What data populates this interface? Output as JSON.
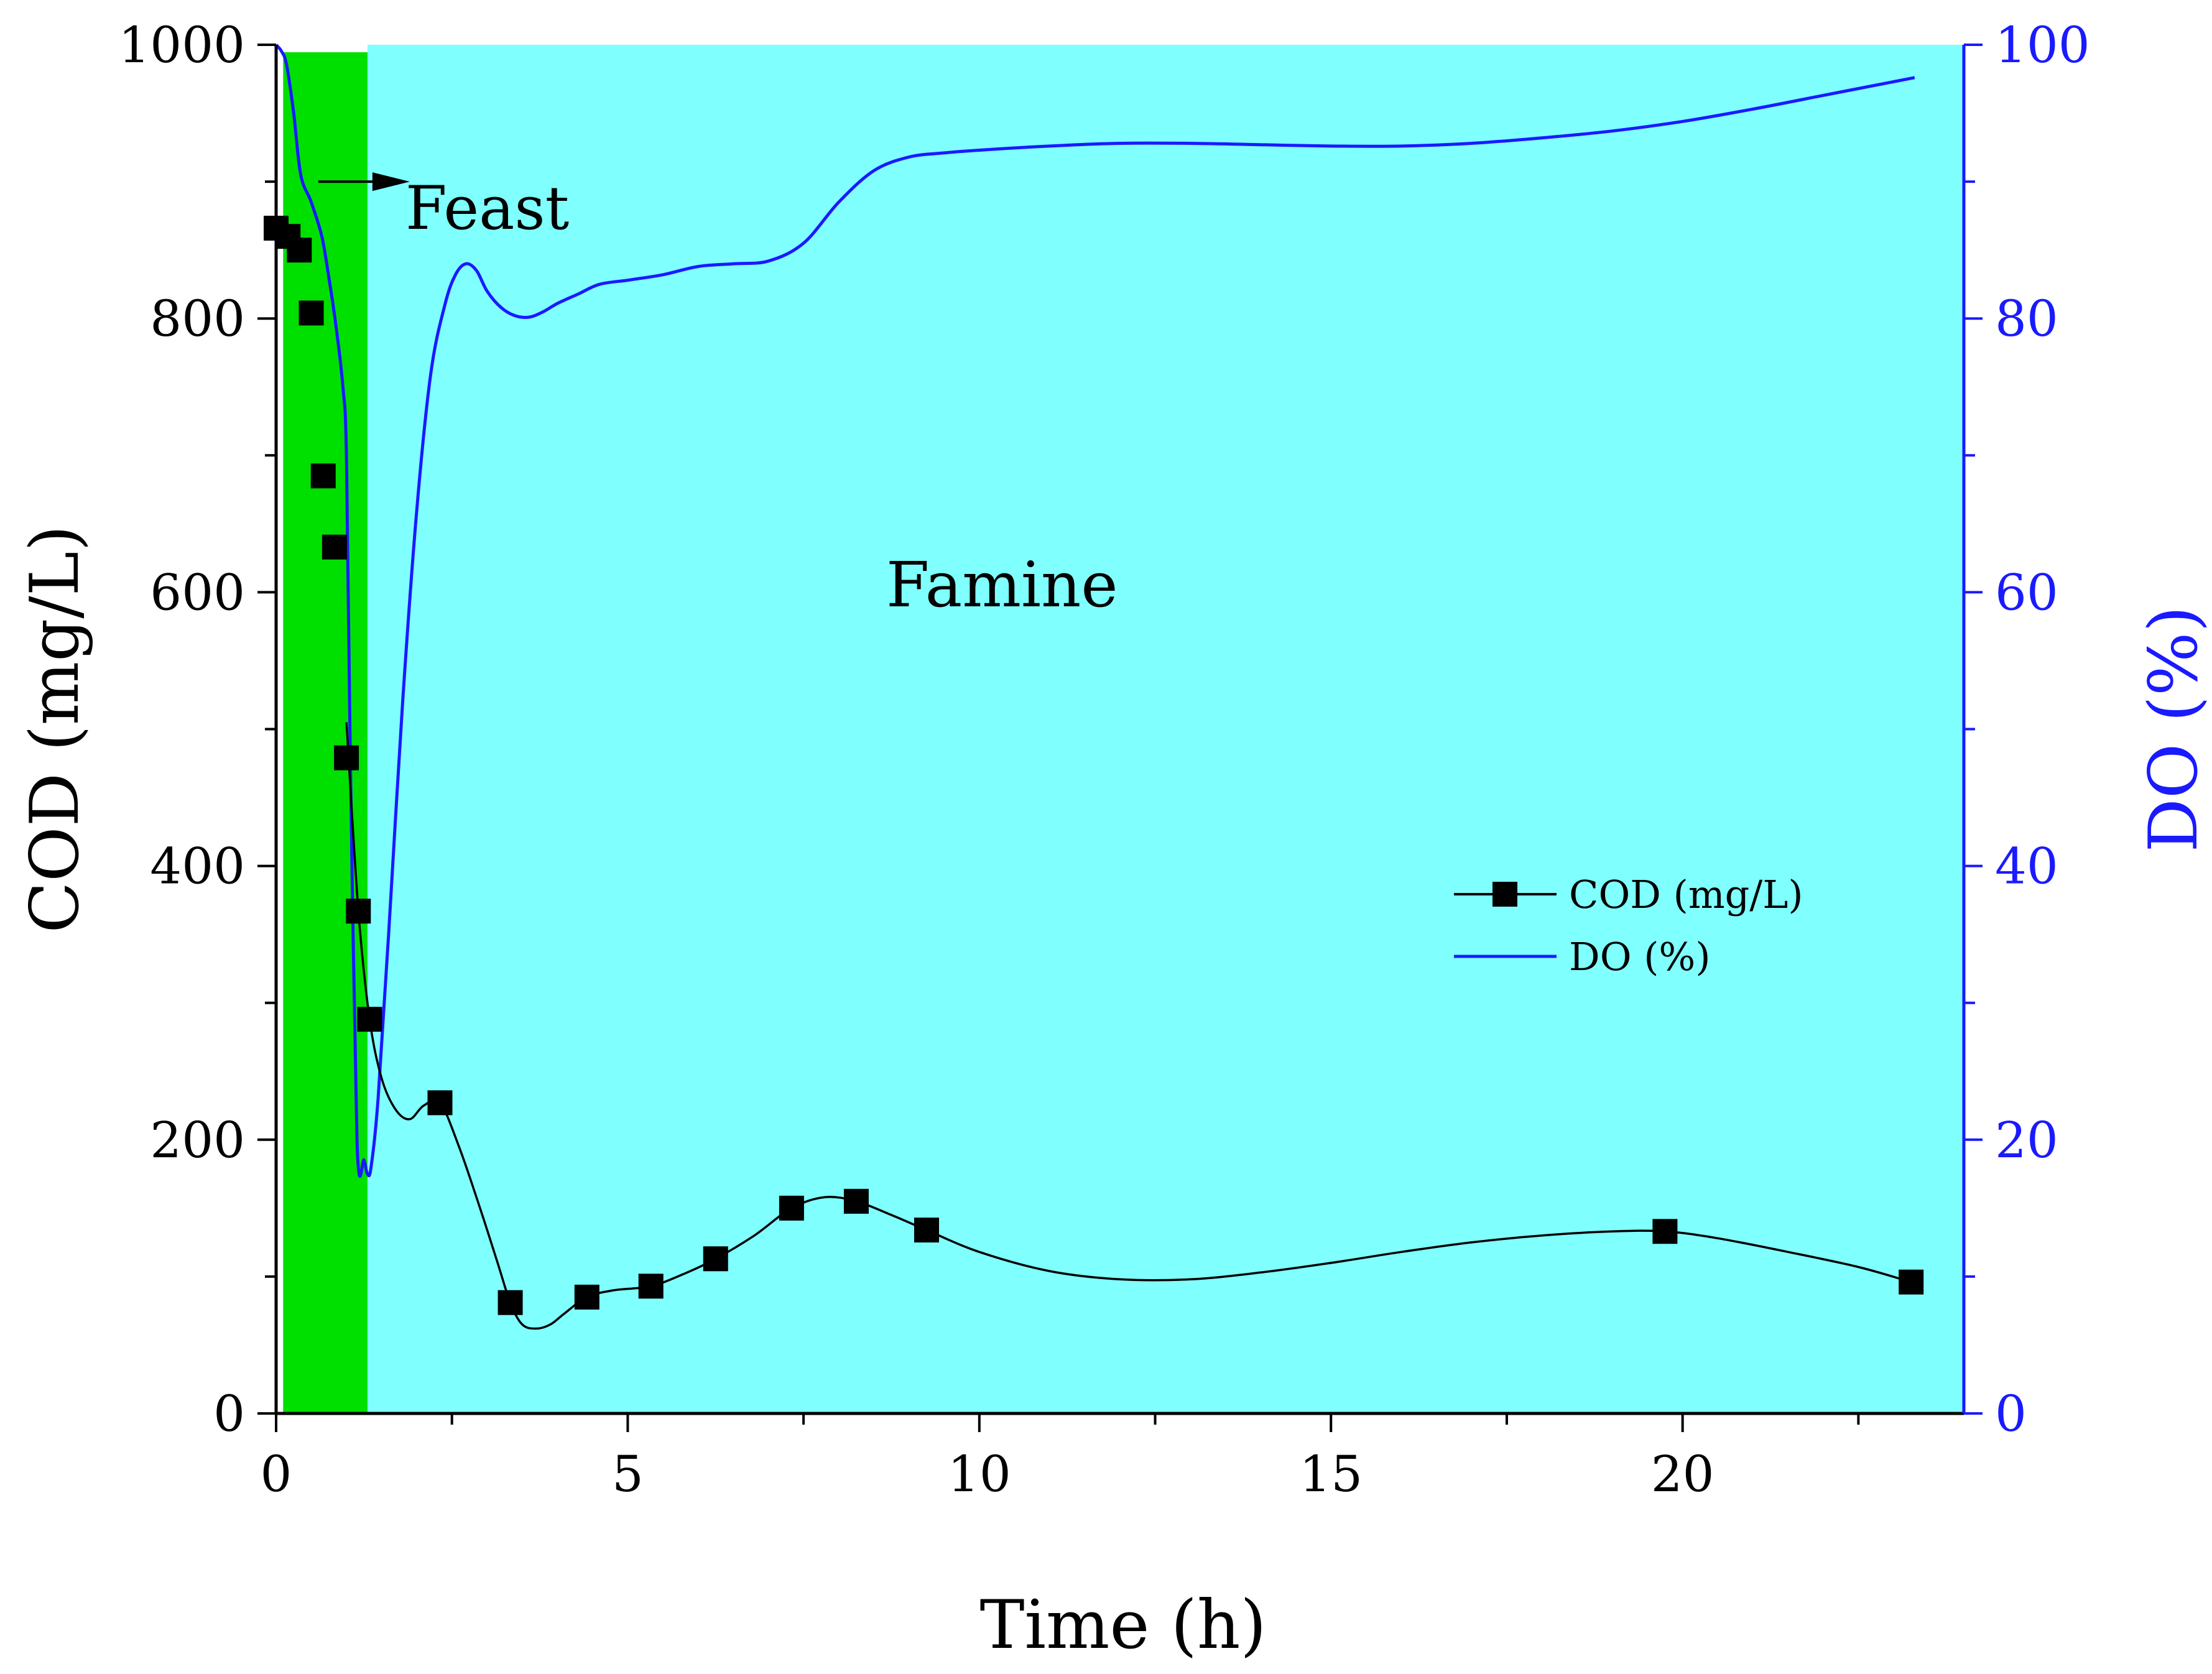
{
  "chart_data": {
    "type": "line",
    "xlabel": "Time (h)",
    "ylabel_left": "COD (mg/L)",
    "ylabel_right": "DO (%)",
    "xlim": [
      0,
      24
    ],
    "ylim_left": [
      0,
      1000
    ],
    "ylim_right": [
      0,
      100
    ],
    "x_ticks": [
      0,
      5,
      10,
      15,
      20
    ],
    "x_tick_labels": [
      "0",
      "5",
      "10",
      "15",
      "20"
    ],
    "y_left_ticks": [
      0,
      200,
      400,
      600,
      800,
      1000
    ],
    "y_left_tick_labels": [
      "0",
      "200",
      "400",
      "600",
      "800",
      "1000"
    ],
    "y_right_ticks": [
      0,
      20,
      40,
      60,
      80,
      100
    ],
    "y_right_tick_labels": [
      "0",
      "20",
      "40",
      "60",
      "80",
      "100"
    ],
    "regions": [
      {
        "name": "Feast",
        "x_start": 0.1,
        "x_end": 1.3,
        "color": "#00e000"
      },
      {
        "name": "Famine",
        "x_start": 1.3,
        "x_end": 24,
        "color": "#80ffff"
      }
    ],
    "annotations": {
      "feast_label": "Feast",
      "famine_label": "Famine",
      "feast_arrow": {
        "x_from": 0.6,
        "x_to": 1.9,
        "y": 900
      }
    },
    "series": [
      {
        "name": "COD (mg/L)",
        "axis": "left",
        "color": "#000000",
        "marker": "square",
        "x": [
          0.0,
          0.17,
          0.33,
          0.5,
          0.67,
          0.83,
          1.0,
          1.17,
          1.33,
          2.33,
          3.33,
          4.42,
          5.33,
          6.25,
          7.33,
          8.25,
          9.25,
          19.75,
          23.25
        ],
        "values": [
          866,
          860,
          850,
          804,
          685,
          633,
          479,
          367,
          288,
          227,
          81,
          85,
          93,
          113,
          150,
          155,
          134,
          133,
          96
        ],
        "curve_x": [
          1.0,
          1.17,
          1.33,
          1.5,
          1.7,
          1.9,
          2.1,
          2.33,
          2.6,
          2.9,
          3.15,
          3.33,
          3.5,
          3.7,
          3.9,
          4.1,
          4.42,
          4.8,
          5.33,
          5.8,
          6.25,
          6.8,
          7.33,
          7.8,
          8.25,
          8.75,
          9.25,
          10.0,
          11.0,
          12.0,
          13.0,
          14.0,
          15.0,
          16.0,
          17.0,
          18.0,
          19.0,
          19.75,
          20.5,
          21.5,
          22.5,
          23.25
        ],
        "curve_values": [
          505,
          367,
          288,
          245,
          222,
          215,
          225,
          227,
          195,
          150,
          110,
          81,
          65,
          62,
          65,
          73,
          85,
          90,
          93,
          102,
          113,
          130,
          150,
          158,
          155,
          145,
          134,
          118,
          104,
          98,
          98,
          103,
          110,
          118,
          125,
          130,
          133,
          133,
          128,
          118,
          107,
          96
        ]
      },
      {
        "name": "DO (%)",
        "axis": "right",
        "color": "#1a1aff",
        "marker": "none",
        "x": [
          0.0,
          0.08,
          0.15,
          0.25,
          0.35,
          0.5,
          0.65,
          0.75,
          0.85,
          0.95,
          1.0,
          1.05,
          1.15,
          1.25,
          1.3,
          1.35,
          1.45,
          1.6,
          1.8,
          2.0,
          2.2,
          2.4,
          2.55,
          2.7,
          2.85,
          3.0,
          3.2,
          3.4,
          3.6,
          3.8,
          4.0,
          4.3,
          4.6,
          5.0,
          5.5,
          6.0,
          6.5,
          7.0,
          7.5,
          8.0,
          8.5,
          9.0,
          9.5,
          10.0,
          11.0,
          12.0,
          13.0,
          14.0,
          15.0,
          16.0,
          17.0,
          18.0,
          19.0,
          20.0,
          21.0,
          22.0,
          23.0,
          23.3
        ],
        "values": [
          100,
          99.5,
          98.5,
          95,
          90.5,
          88.5,
          86,
          83,
          79.5,
          75,
          70,
          50,
          20,
          18.5,
          17.5,
          18,
          23,
          35,
          52,
          66,
          76,
          81,
          83.2,
          84,
          83.5,
          82,
          80.8,
          80.2,
          80.1,
          80.5,
          81.1,
          81.8,
          82.5,
          82.8,
          83.2,
          83.8,
          84,
          84.2,
          85.5,
          88.5,
          90.8,
          91.8,
          92.1,
          92.3,
          92.6,
          92.8,
          92.8,
          92.7,
          92.6,
          92.6,
          92.8,
          93.2,
          93.7,
          94.4,
          95.3,
          96.3,
          97.3,
          97.6
        ]
      }
    ],
    "legend": {
      "placement": "center-right",
      "entries": [
        "COD (mg/L)",
        "DO (%)"
      ]
    }
  }
}
